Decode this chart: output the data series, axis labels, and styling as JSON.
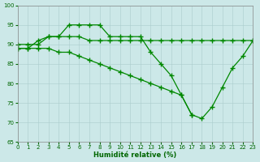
{
  "xlabel": "Humidité relative (%)",
  "background_color": "#cce8e8",
  "grid_color": "#aacccc",
  "line_color": "#008800",
  "ylim": [
    65,
    100
  ],
  "xlim": [
    0,
    23
  ],
  "yticks": [
    65,
    70,
    75,
    80,
    85,
    90,
    95,
    100
  ],
  "xticks": [
    0,
    1,
    2,
    3,
    4,
    5,
    6,
    7,
    8,
    9,
    10,
    11,
    12,
    13,
    14,
    15,
    16,
    17,
    18,
    19,
    20,
    21,
    22,
    23
  ],
  "series1_x": [
    0,
    1,
    2,
    3,
    4,
    5,
    6,
    7,
    8,
    9,
    10,
    11,
    12,
    13,
    14,
    15,
    16,
    17
  ],
  "series1_y": [
    89,
    89,
    91,
    92,
    92,
    95,
    95,
    95,
    95,
    92,
    92,
    92,
    92,
    88,
    85,
    82,
    77,
    72
  ],
  "series2_x": [
    0,
    1,
    2,
    3,
    4,
    5,
    6,
    7,
    8,
    9,
    10,
    11,
    12,
    13,
    14,
    15,
    16,
    17,
    18,
    19,
    20,
    21,
    22,
    23
  ],
  "series2_y": [
    90,
    90,
    90,
    92,
    92,
    92,
    92,
    91,
    91,
    91,
    91,
    91,
    91,
    91,
    91,
    91,
    91,
    91,
    91,
    91,
    91,
    91,
    91,
    91
  ],
  "series3_x": [
    0,
    1,
    2,
    3,
    4,
    5,
    6,
    7,
    8,
    9,
    10,
    11,
    12,
    13,
    14,
    15,
    16,
    17,
    18,
    19,
    20,
    21,
    22,
    23
  ],
  "series3_y": [
    89,
    89,
    89,
    89,
    88,
    88,
    87,
    86,
    85,
    84,
    83,
    82,
    81,
    80,
    79,
    78,
    77,
    72,
    71,
    74,
    79,
    84,
    87,
    91
  ]
}
